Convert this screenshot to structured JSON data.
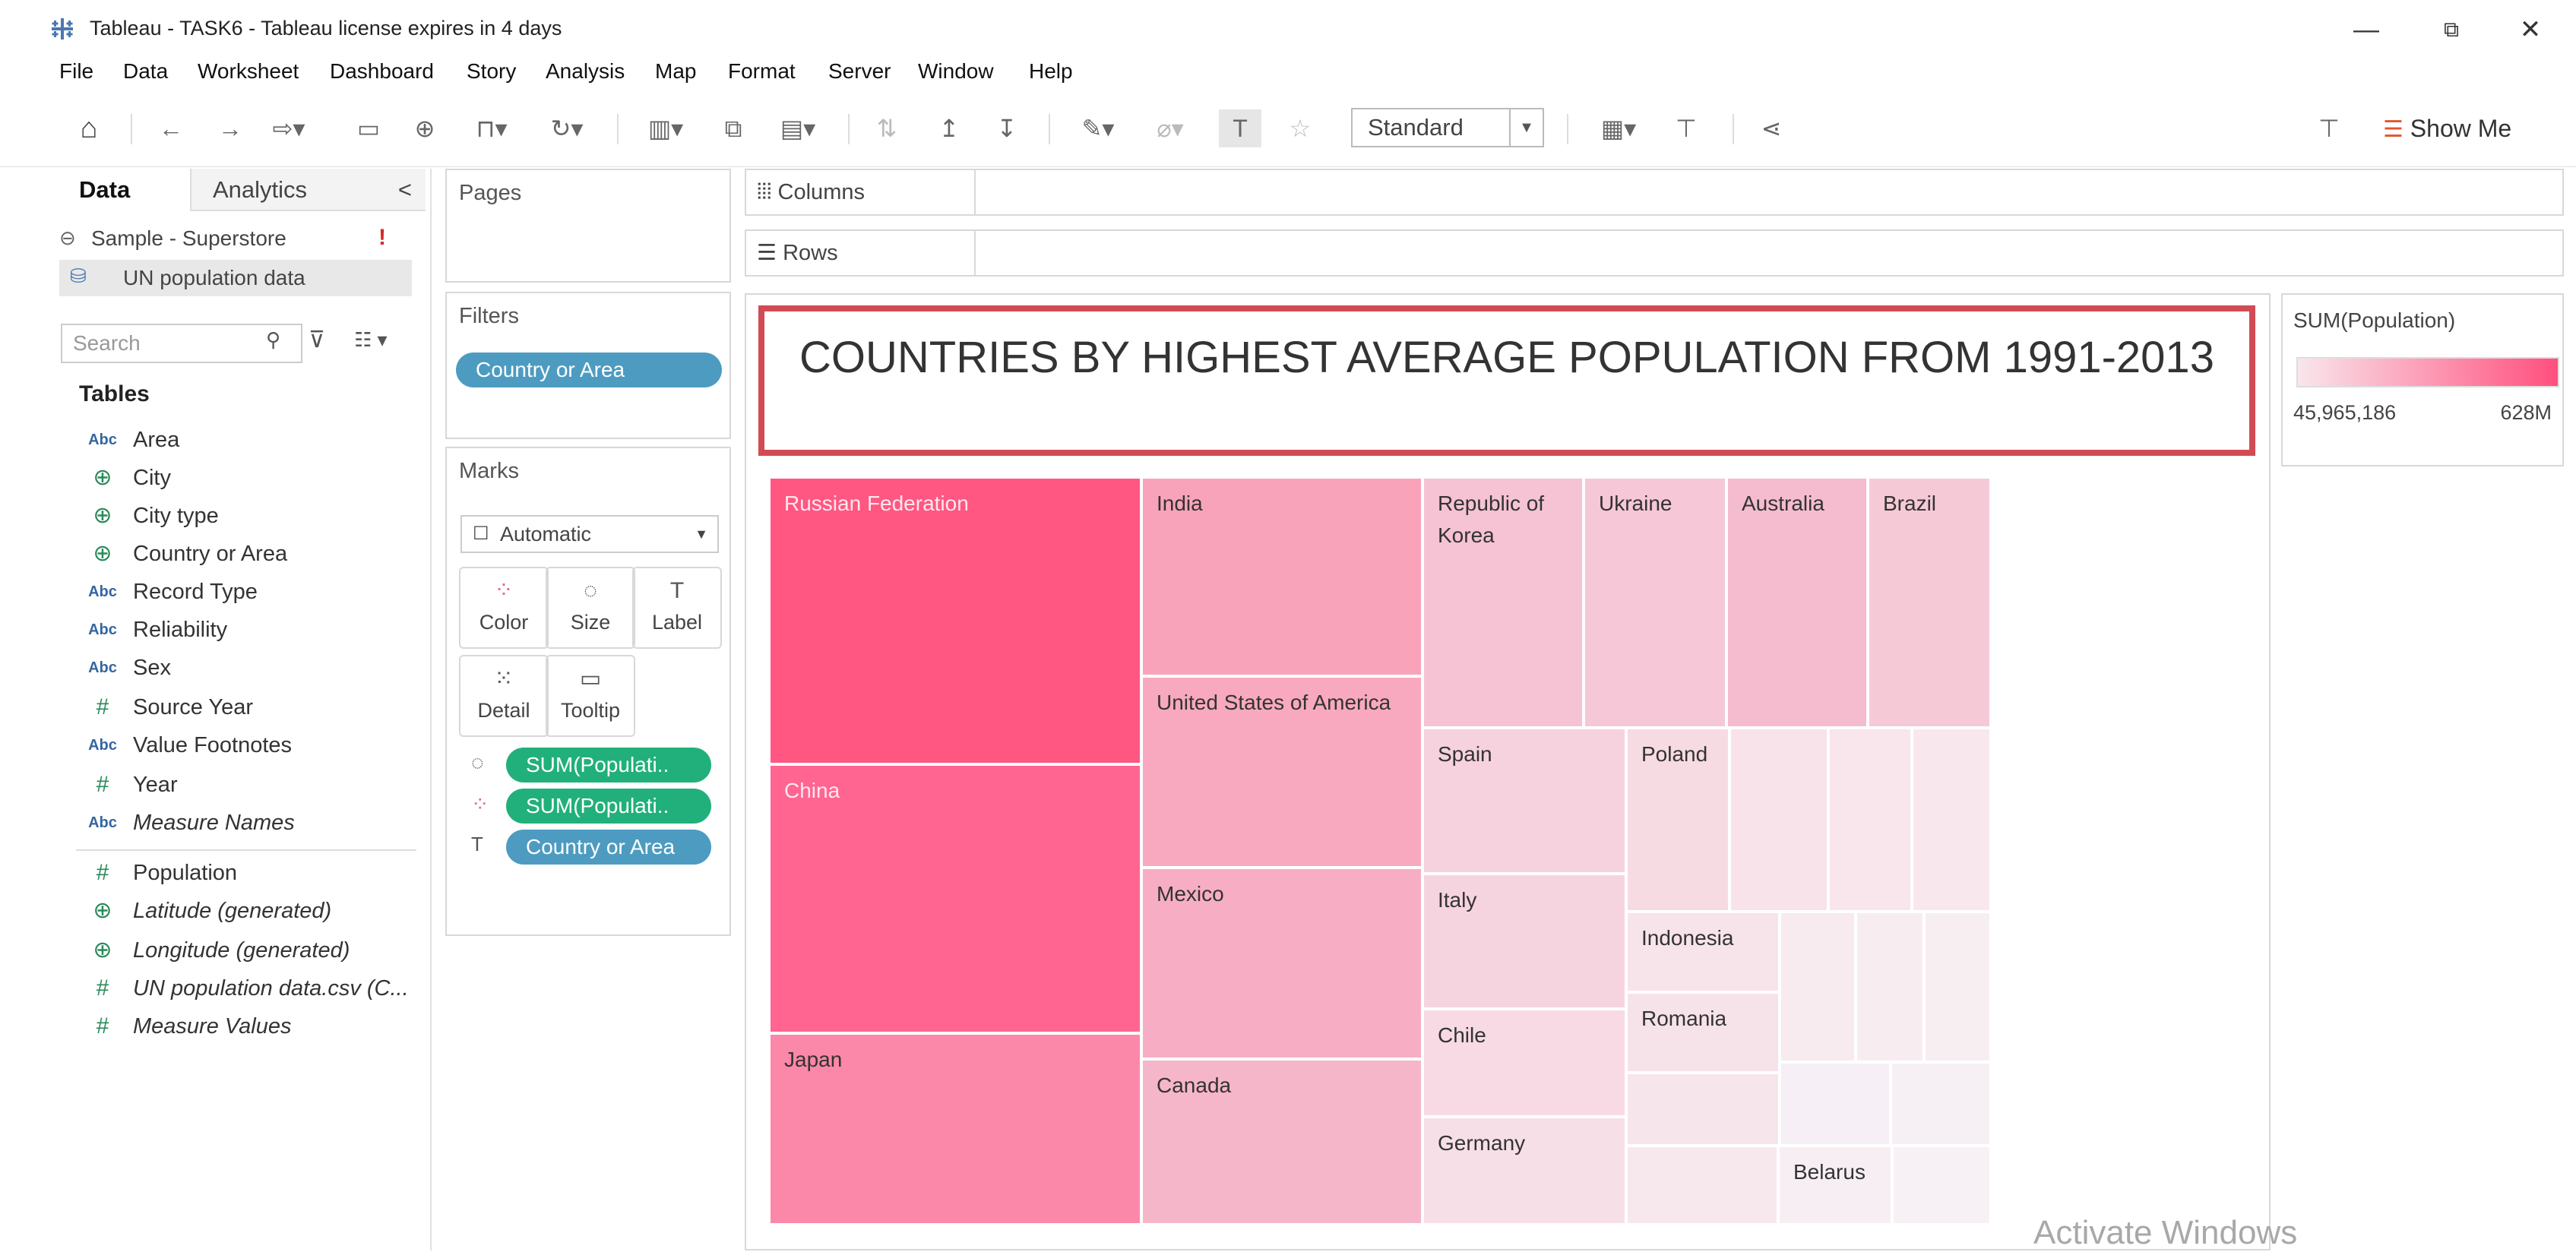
{
  "window": {
    "title": "Tableau - TASK6 - Tableau license expires in 4 days",
    "controls": {
      "minimize": "—",
      "restore": "⧉",
      "close": "✕"
    }
  },
  "menu": [
    "File",
    "Data",
    "Worksheet",
    "Dashboard",
    "Story",
    "Analysis",
    "Map",
    "Format",
    "Server",
    "Window",
    "Help"
  ],
  "toolbar": {
    "fit_value": "Standard",
    "show_me_label": "Show Me",
    "icons": [
      "home-icon",
      "undo-icon",
      "redo-icon",
      "replay-icon",
      "save-icon",
      "new-datasource-icon",
      "pause-update-icon",
      "refresh-icon",
      "new-worksheet-icon",
      "duplicate-icon",
      "clear-icon",
      "swap-icon",
      "sort-ascending-icon",
      "sort-descending-icon",
      "highlight-icon",
      "group-icon",
      "show-labels-icon",
      "pin-icon",
      "show-cards-icon",
      "presentation-icon",
      "share-icon",
      "tooltip-icon"
    ]
  },
  "left_pane": {
    "tabs": {
      "data": "Data",
      "analytics": "Analytics",
      "collapse": "<"
    },
    "datasources": [
      {
        "name": "Sample - Superstore",
        "warning": "!"
      },
      {
        "name": "UN population data"
      }
    ],
    "search_placeholder": "Search",
    "tables_heading": "Tables",
    "fields": [
      {
        "type": "Abc",
        "name": "Area",
        "italic": false
      },
      {
        "type": "globe",
        "name": "City",
        "italic": false
      },
      {
        "type": "globe",
        "name": "City type",
        "italic": false
      },
      {
        "type": "globe",
        "name": "Country or Area",
        "italic": false
      },
      {
        "type": "Abc",
        "name": "Record Type",
        "italic": false
      },
      {
        "type": "Abc",
        "name": "Reliability",
        "italic": false
      },
      {
        "type": "Abc",
        "name": "Sex",
        "italic": false
      },
      {
        "type": "#",
        "name": "Source Year",
        "italic": false
      },
      {
        "type": "Abc",
        "name": "Value Footnotes",
        "italic": false
      },
      {
        "type": "#",
        "name": "Year",
        "italic": false
      },
      {
        "type": "Abc",
        "name": "Measure Names",
        "italic": true
      },
      {
        "type": "#",
        "name": "Population",
        "italic": false
      },
      {
        "type": "globe",
        "name": "Latitude (generated)",
        "italic": true
      },
      {
        "type": "globe",
        "name": "Longitude (generated)",
        "italic": true
      },
      {
        "type": "#",
        "name": "UN population data.csv (C...",
        "italic": true
      },
      {
        "type": "#",
        "name": "Measure Values",
        "italic": true
      }
    ]
  },
  "cards": {
    "pages_title": "Pages",
    "filters_title": "Filters",
    "filter_pill": "Country or Area",
    "marks_title": "Marks",
    "mark_type": "Automatic",
    "mark_buttons": [
      "Color",
      "Size",
      "Label",
      "Detail",
      "Tooltip"
    ],
    "mark_pills": [
      {
        "encoding": "size",
        "label": "SUM(Populati..",
        "color": "green"
      },
      {
        "encoding": "color",
        "label": "SUM(Populati..",
        "color": "green"
      },
      {
        "encoding": "label",
        "label": "Country or Area",
        "color": "blue"
      }
    ]
  },
  "shelves": {
    "columns": "Columns",
    "rows": "Rows"
  },
  "view": {
    "title": "COUNTRIES BY HIGHEST AVERAGE POPULATION FROM 1991-2013"
  },
  "legend": {
    "title": "SUM(Population)",
    "min": "45,965,186",
    "max": "628M",
    "color_low": "#f9e6ec",
    "color_high": "#ff4f7e"
  },
  "chart_data": {
    "type": "treemap",
    "measure": "SUM(Population)",
    "labeled_tiles": [
      "Russian Federation",
      "China",
      "Japan",
      "India",
      "United States of America",
      "Mexico",
      "Canada",
      "Republic of Korea",
      "Ukraine",
      "Australia",
      "Brazil",
      "Spain",
      "Poland",
      "Italy",
      "Indonesia",
      "Chile",
      "Romania",
      "Germany",
      "Belarus"
    ],
    "unlabeled_tile_count": 15
  },
  "watermark": "Activate Windows"
}
